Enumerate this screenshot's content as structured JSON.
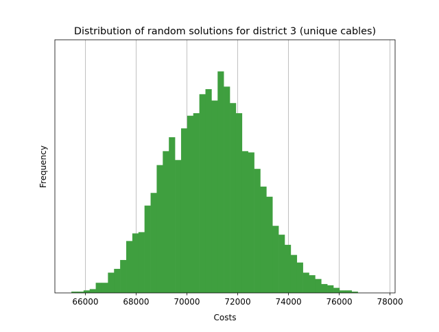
{
  "chart_data": {
    "type": "bar",
    "title": "Distribution of random solutions for district 3 (unique cables)",
    "xlabel": "Costs",
    "ylabel": "Frequency",
    "xlim": [
      64800,
      78200
    ],
    "ylim": [
      0,
      200
    ],
    "grid": "x",
    "bar_color": "#3f9f3f",
    "x_ticks": [
      66000,
      68000,
      70000,
      72000,
      74000,
      76000,
      78000
    ],
    "bins_start": 65450,
    "bin_width": 240,
    "values": [
      1,
      1,
      2,
      3,
      8,
      8,
      16,
      19,
      26,
      41,
      47,
      48,
      69,
      79,
      101,
      112,
      123,
      105,
      130,
      140,
      142,
      157,
      161,
      152,
      175,
      163,
      150,
      142,
      112,
      111,
      98,
      84,
      76,
      53,
      46,
      38,
      30,
      24,
      16,
      14,
      11,
      7,
      6,
      4,
      2,
      2,
      1
    ]
  }
}
